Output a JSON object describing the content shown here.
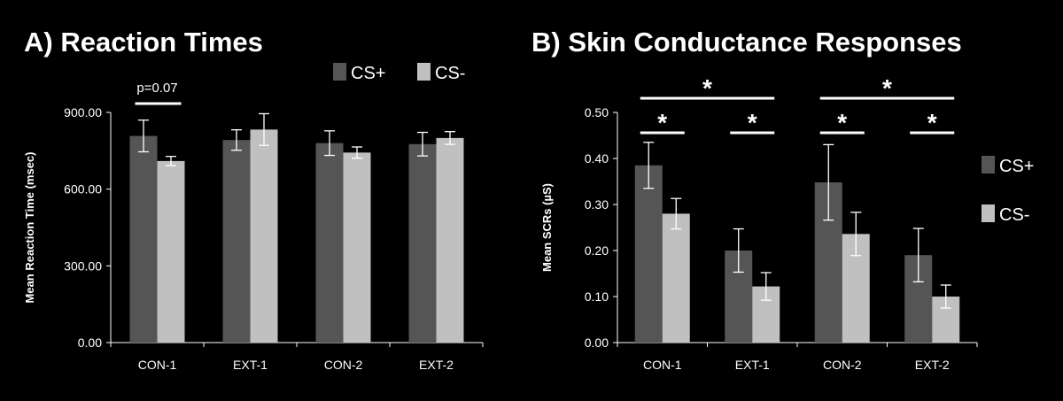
{
  "chart_data": [
    {
      "type": "bar",
      "title": "A) Reaction Times",
      "ylabel": "Mean Reaction Time (msec)",
      "categories": [
        "CON-1",
        "EXT-1",
        "CON-2",
        "EXT-2"
      ],
      "ylim": [
        0,
        900
      ],
      "yticks": [
        "0.00",
        "300.00",
        "600.00",
        "900.00"
      ],
      "series": [
        {
          "name": "CS+",
          "values": [
            808,
            792,
            780,
            776
          ],
          "errors": [
            62,
            40,
            48,
            46
          ],
          "color": "#555555"
        },
        {
          "name": "CS-",
          "values": [
            710,
            833,
            743,
            800
          ],
          "errors": [
            18,
            62,
            22,
            25
          ],
          "color": "#c0c0c0"
        }
      ],
      "legend_position": "top-right",
      "annotations": [
        {
          "text": "p=0.07",
          "category": 0
        }
      ]
    },
    {
      "type": "bar",
      "title": "B) Skin Conductance Responses",
      "ylabel": "Mean SCRs (µS)",
      "categories": [
        "CON-1",
        "EXT-1",
        "CON-2",
        "EXT-2"
      ],
      "ylim": [
        0,
        0.5
      ],
      "yticks": [
        "0.00",
        "0.10",
        "0.20",
        "0.30",
        "0.40",
        "0.50"
      ],
      "series": [
        {
          "name": "CS+",
          "values": [
            0.385,
            0.2,
            0.348,
            0.19
          ],
          "errors": [
            0.05,
            0.047,
            0.082,
            0.058
          ],
          "color": "#555555"
        },
        {
          "name": "CS-",
          "values": [
            0.28,
            0.122,
            0.236,
            0.1
          ],
          "errors": [
            0.033,
            0.03,
            0.047,
            0.025
          ],
          "color": "#c0c0c0"
        }
      ],
      "legend_position": "right",
      "significance": [
        {
          "label": "*",
          "from": 0,
          "to": 0,
          "type": "within"
        },
        {
          "label": "*",
          "from": 1,
          "to": 1,
          "type": "within"
        },
        {
          "label": "*",
          "from": 2,
          "to": 2,
          "type": "within"
        },
        {
          "label": "*",
          "from": 3,
          "to": 3,
          "type": "within"
        },
        {
          "label": "*",
          "from": 0,
          "to": 1,
          "type": "across"
        },
        {
          "label": "*",
          "from": 2,
          "to": 3,
          "type": "across"
        }
      ]
    }
  ]
}
